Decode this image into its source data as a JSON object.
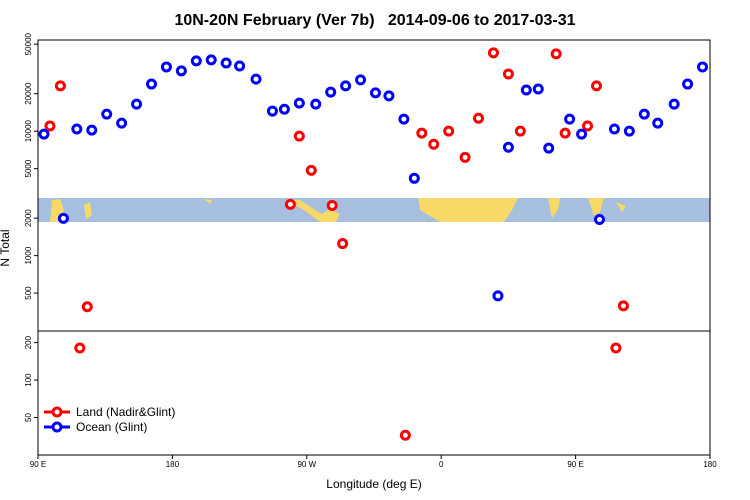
{
  "chart_data": {
    "type": "scatter",
    "title": "10N-20N February (Ver 7b)   2014-09-06 to 2017-03-31",
    "x_label": "Longitude (deg E)",
    "y_label": "N Total",
    "log_y": true,
    "xlim": [
      90,
      540
    ],
    "ylim": [
      25,
      54000
    ],
    "xticks": [
      {
        "value": 90,
        "label": "90 E"
      },
      180,
      {
        "value": 270,
        "label": "90 W"
      },
      {
        "value": 360,
        "label": "0"
      },
      {
        "value": 450,
        "label": "90 E"
      },
      {
        "value": 540,
        "label": "180"
      }
    ],
    "yticks": [
      50,
      100,
      200,
      500,
      1000,
      2000,
      5000,
      10000,
      20000,
      50000
    ],
    "legend": "bottom-left",
    "series": [
      {
        "name": "Land (Nadir&Glint)",
        "color": "#ff0000",
        "x": [
          98,
          105,
          123,
          118,
          259,
          265,
          273,
          287,
          294,
          336,
          347,
          355,
          365,
          376,
          385,
          395,
          405,
          413,
          437,
          443,
          458,
          464,
          482,
          477
        ],
        "values": [
          11000,
          23100,
          388,
          181,
          2580,
          9120,
          4840,
          2530,
          1250,
          36,
          9640,
          7850,
          10000,
          6160,
          12700,
          42600,
          28800,
          10000,
          41800,
          9640,
          11000,
          23100,
          395,
          181
        ]
      },
      {
        "name": "Ocean (Glint)",
        "color": "#0000ff",
        "x": [
          94,
          107,
          116,
          126,
          136,
          146,
          156,
          166,
          176,
          186,
          196,
          206,
          216,
          225,
          236,
          247,
          255,
          265,
          276,
          286,
          296,
          306,
          316,
          325,
          335,
          342,
          398,
          405,
          417,
          425,
          432,
          446,
          454,
          466,
          476,
          486,
          496,
          505,
          516,
          525,
          535
        ],
        "values": [
          9460,
          1990,
          10400,
          10200,
          13700,
          11600,
          16500,
          23900,
          32800,
          30500,
          36700,
          37400,
          35300,
          33400,
          26200,
          14500,
          15000,
          16800,
          16500,
          20600,
          23100,
          25800,
          20300,
          19200,
          12500,
          4180,
          475,
          7430,
          21400,
          21800,
          7300,
          12500,
          9460,
          1950,
          10400,
          10000,
          13700,
          11600,
          16500,
          23900,
          32800
        ]
      }
    ]
  }
}
